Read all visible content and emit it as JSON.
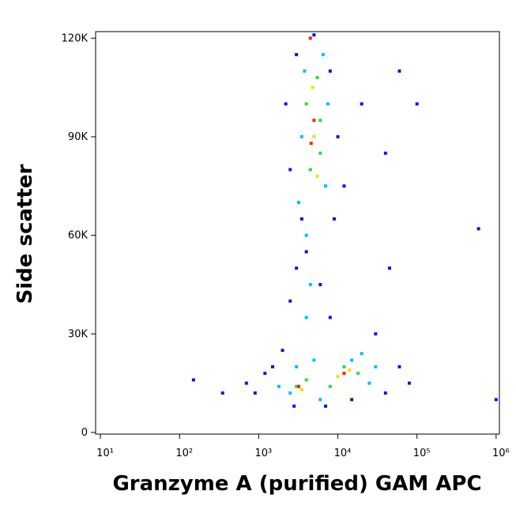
{
  "chart_data": {
    "type": "scatter",
    "x_label": "Granzyme A (purified) GAM APC",
    "y_label": "Side scatter",
    "x_scale": "log",
    "xlim": [
      8.7,
      1100000
    ],
    "ylim": [
      -500,
      122000
    ],
    "xticks": [
      {
        "value": 10,
        "label": "10¹"
      },
      {
        "value": 100,
        "label": "10²"
      },
      {
        "value": 1000,
        "label": "10³"
      },
      {
        "value": 10000,
        "label": "10⁴"
      },
      {
        "value": 100000,
        "label": "10⁵"
      },
      {
        "value": 1000000,
        "label": "10⁶"
      }
    ],
    "yticks": [
      0,
      {
        "value": 30000,
        "label": "30K"
      },
      {
        "value": 60000,
        "label": "60K"
      },
      {
        "value": 90000,
        "label": "90K"
      },
      {
        "value": 120000,
        "label": "120K"
      }
    ],
    "series": [
      {
        "color": "#1010f0",
        "x": [
          1500,
          2000,
          1200,
          900,
          700,
          350,
          150,
          2500,
          3000,
          4000,
          6000,
          8000,
          3500,
          2500,
          2200,
          3000,
          8000,
          10000,
          12000,
          9000,
          20000,
          40000,
          60000,
          80000,
          60000,
          40000,
          30000,
          1000000,
          600000,
          5000,
          2800,
          7000,
          15000,
          45000,
          100000
        ],
        "y": [
          20000,
          25000,
          18000,
          12000,
          15000,
          12000,
          16000,
          40000,
          50000,
          55000,
          45000,
          35000,
          65000,
          80000,
          100000,
          115000,
          110000,
          90000,
          75000,
          65000,
          100000,
          85000,
          110000,
          15000,
          20000,
          12000,
          30000,
          10000,
          62000,
          121000,
          8000,
          8000,
          10000,
          50000,
          100000
        ]
      },
      {
        "color": "#00c0f0",
        "x": [
          3000,
          2500,
          5000,
          6000,
          15000,
          25000,
          20000,
          4000,
          4500,
          3200,
          7000,
          3500,
          7500,
          3800,
          6500,
          4000,
          1800,
          30000
        ],
        "y": [
          20000,
          12000,
          22000,
          10000,
          22000,
          15000,
          24000,
          35000,
          45000,
          70000,
          75000,
          90000,
          100000,
          110000,
          115000,
          60000,
          14000,
          20000
        ]
      },
      {
        "color": "#30d840",
        "x": [
          4000,
          8000,
          12000,
          4500,
          6000,
          4000,
          5500,
          6000,
          3000,
          18000
        ],
        "y": [
          16000,
          14000,
          20000,
          80000,
          95000,
          100000,
          108000,
          85000,
          14000,
          18000
        ]
      },
      {
        "color": "#f0e000",
        "x": [
          3500,
          10000,
          5000,
          4800,
          5500,
          14000
        ],
        "y": [
          13000,
          17000,
          90000,
          105000,
          78000,
          19000
        ]
      },
      {
        "color": "#ff2000",
        "x": [
          3200,
          5000,
          4600,
          12000,
          4500
        ],
        "y": [
          14000,
          95000,
          88000,
          18000,
          120000
        ]
      }
    ]
  }
}
